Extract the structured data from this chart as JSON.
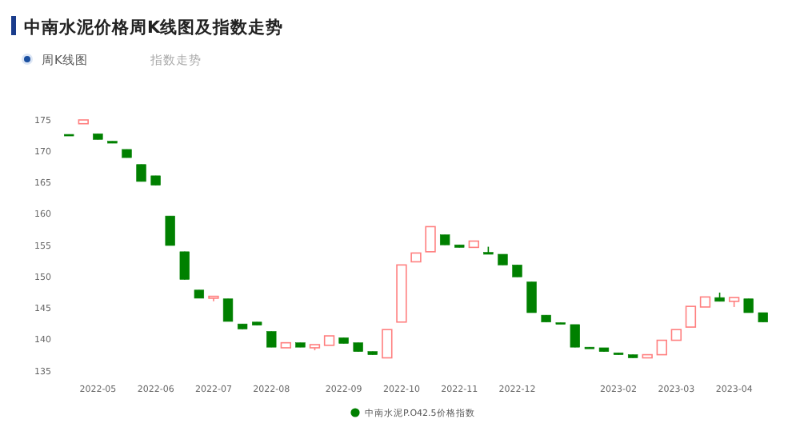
{
  "chart_data": {
    "type": "candlestick",
    "title": "中南水泥价格周K线图及指数走势",
    "annotations": [
      "周K线图",
      "指数走势"
    ],
    "categories": [
      null,
      null,
      "2022-05",
      null,
      null,
      null,
      "2022-06",
      null,
      null,
      null,
      "2022-07",
      null,
      null,
      null,
      "2022-08",
      null,
      null,
      null,
      null,
      "2022-09",
      null,
      null,
      null,
      "2022-10",
      null,
      null,
      null,
      "2022-11",
      null,
      null,
      null,
      "2022-12",
      null,
      null,
      null,
      null,
      null,
      null,
      "2023-02",
      null,
      null,
      null,
      "2023-03",
      null,
      null,
      null,
      "2023-04",
      null,
      null
    ],
    "series": [
      {
        "name": "中南水泥P.O42.5价格指数",
        "color": "#008000",
        "colors": [
          "#008000",
          "#ff7f7f",
          "#008000",
          "#008000",
          "#008000",
          "#008000",
          "#008000",
          "#008000",
          "#008000",
          "#008000",
          "#ff7f7f",
          "#008000",
          "#008000",
          "#008000",
          "#008000",
          "#ff7f7f",
          "#008000",
          "#ff7f7f",
          "#ff7f7f",
          "#008000",
          "#008000",
          "#008000",
          "#ff7f7f",
          "#ff7f7f",
          "#ff7f7f",
          "#ff7f7f",
          "#008000",
          "#008000",
          "#ff7f7f",
          "#008000",
          "#008000",
          "#008000",
          "#008000",
          "#008000",
          "#008000",
          "#008000",
          "#008000",
          "#008000",
          "#008000",
          "#008000",
          "#ff7f7f",
          "#ff7f7f",
          "#ff7f7f",
          "#ff7f7f",
          "#ff7f7f",
          "#008000",
          "#ff7f7f",
          "#008000",
          "#008000"
        ],
        "ohlc": [
          [
            172.7,
            172.7,
            172.5,
            172.5
          ],
          [
            174.4,
            175.0,
            174.4,
            175.0
          ],
          [
            172.8,
            172.8,
            171.9,
            171.9
          ],
          [
            171.6,
            171.6,
            171.3,
            171.3
          ],
          [
            170.3,
            170.3,
            169.0,
            169.0
          ],
          [
            167.9,
            167.9,
            165.2,
            165.2
          ],
          [
            166.1,
            166.1,
            164.6,
            164.6
          ],
          [
            159.7,
            159.7,
            155.0,
            155.0
          ],
          [
            154.0,
            154.0,
            149.6,
            149.6
          ],
          [
            147.9,
            147.9,
            146.6,
            146.6
          ],
          [
            146.6,
            146.9,
            146.1,
            146.9
          ],
          [
            146.5,
            146.5,
            142.9,
            142.9
          ],
          [
            142.5,
            142.5,
            141.7,
            141.7
          ],
          [
            142.8,
            142.8,
            142.3,
            142.3
          ],
          [
            141.3,
            141.3,
            138.8,
            138.8
          ],
          [
            138.7,
            139.5,
            138.7,
            139.5
          ],
          [
            139.5,
            139.5,
            138.8,
            138.8
          ],
          [
            138.7,
            139.2,
            138.3,
            139.2
          ],
          [
            139.1,
            140.6,
            139.1,
            140.6
          ],
          [
            140.3,
            140.3,
            139.4,
            139.4
          ],
          [
            139.5,
            139.5,
            138.1,
            138.1
          ],
          [
            138.1,
            138.1,
            137.6,
            137.6
          ],
          [
            137.1,
            141.6,
            137.1,
            141.6
          ],
          [
            142.8,
            151.9,
            142.8,
            151.9
          ],
          [
            152.4,
            153.8,
            152.4,
            153.8
          ],
          [
            154.0,
            158.0,
            154.0,
            158.0
          ],
          [
            156.7,
            156.7,
            155.1,
            155.1
          ],
          [
            155.1,
            155.1,
            154.7,
            154.7
          ],
          [
            154.7,
            155.7,
            154.7,
            155.7
          ],
          [
            153.9,
            154.8,
            153.6,
            153.6
          ],
          [
            153.6,
            153.6,
            151.9,
            151.9
          ],
          [
            151.9,
            151.9,
            150.0,
            150.0
          ],
          [
            149.2,
            149.2,
            144.3,
            144.3
          ],
          [
            143.9,
            143.9,
            142.8,
            142.8
          ],
          [
            142.7,
            142.7,
            142.5,
            142.5
          ],
          [
            142.4,
            142.4,
            138.8,
            138.8
          ],
          [
            138.8,
            138.8,
            138.7,
            138.7
          ],
          [
            138.7,
            138.7,
            138.1,
            138.1
          ],
          [
            137.9,
            137.9,
            137.6,
            137.6
          ],
          [
            137.6,
            137.6,
            137.1,
            137.1
          ],
          [
            137.1,
            137.6,
            137.1,
            137.6
          ],
          [
            137.6,
            139.9,
            137.6,
            139.9
          ],
          [
            139.9,
            141.6,
            139.9,
            141.6
          ],
          [
            142.0,
            145.3,
            142.0,
            145.3
          ],
          [
            145.2,
            146.8,
            145.2,
            146.8
          ],
          [
            146.7,
            147.5,
            146.1,
            146.1
          ],
          [
            146.1,
            146.7,
            145.2,
            146.7
          ],
          [
            146.5,
            146.5,
            144.3,
            144.3
          ],
          [
            144.3,
            144.3,
            142.8,
            142.8
          ]
        ]
      }
    ],
    "ylim": [
      135,
      175
    ],
    "yticks": [
      135,
      140,
      145,
      150,
      155,
      160,
      165,
      170,
      175
    ],
    "grid": false,
    "legend": "bottom"
  }
}
